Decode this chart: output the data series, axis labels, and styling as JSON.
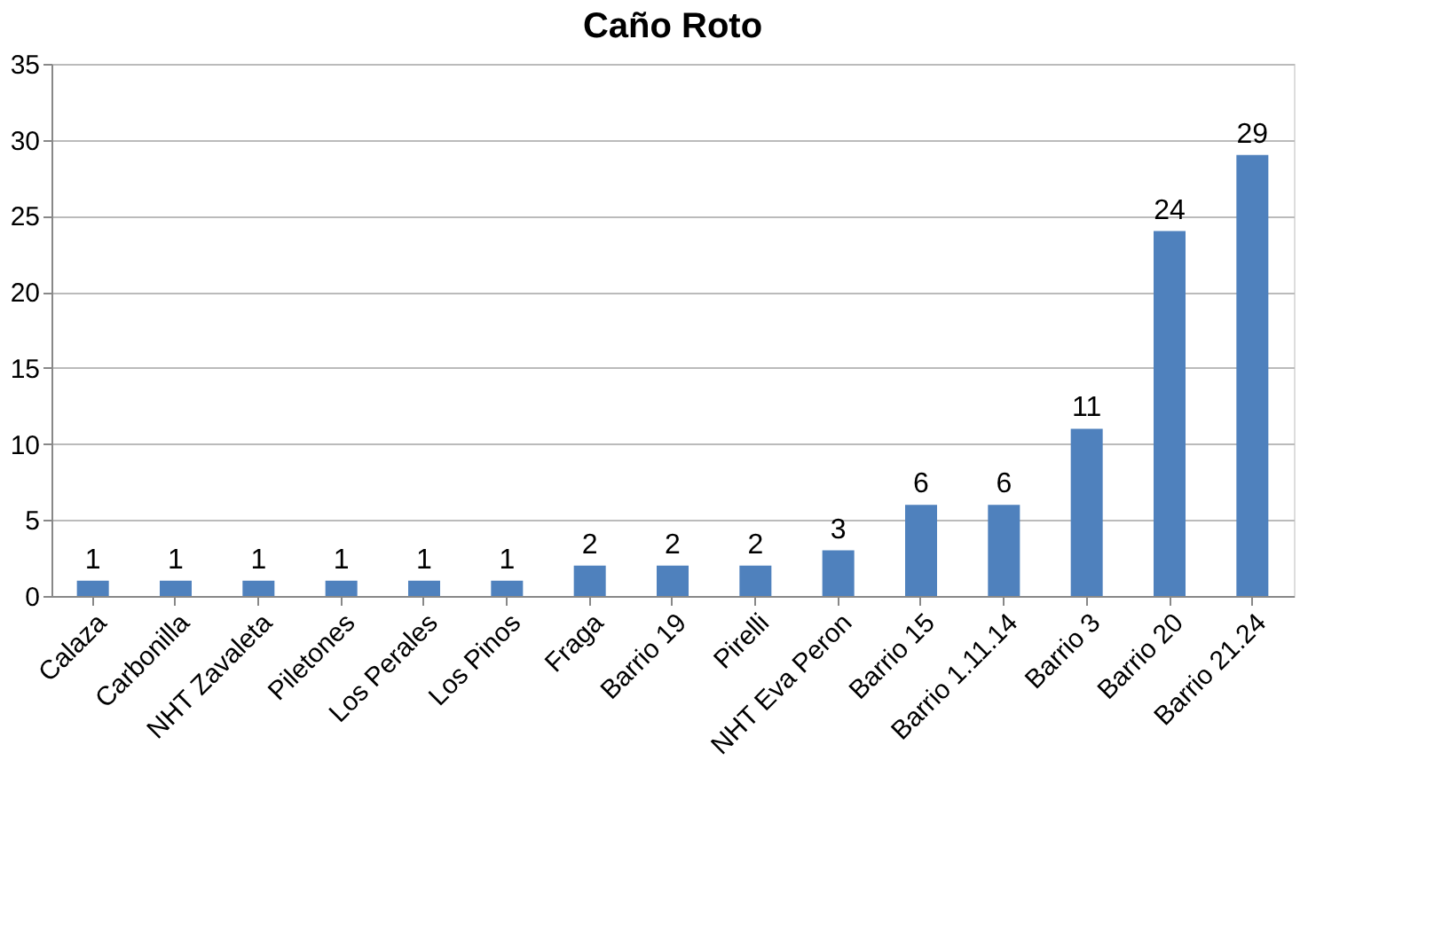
{
  "chart_data": {
    "type": "bar",
    "title": "Caño Roto",
    "categories": [
      "Calaza",
      "Carbonilla",
      "NHT Zavaleta",
      "Piletones",
      "Los Perales",
      "Los Pinos",
      "Fraga",
      "Barrio 19",
      "Pirelli",
      "NHT Eva Peron",
      "Barrio 15",
      "Barrio 1.11.14",
      "Barrio 3",
      "Barrio 20",
      "Barrio 21.24"
    ],
    "values": [
      1,
      1,
      1,
      1,
      1,
      1,
      2,
      2,
      2,
      3,
      6,
      6,
      11,
      24,
      29
    ],
    "color": "#4f81bd",
    "ylim": [
      0,
      35
    ],
    "yticks": [
      0,
      5,
      10,
      15,
      20,
      25,
      30,
      35
    ],
    "grid": "y",
    "data_labels": true
  }
}
